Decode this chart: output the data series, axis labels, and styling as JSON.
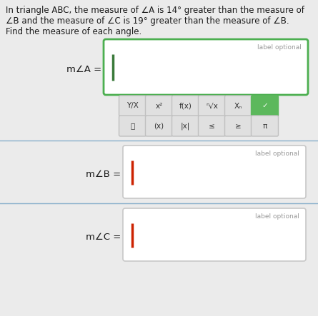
{
  "bg_color": "#ebebeb",
  "title_text_line1": "In triangle ABC, the measure of ∠A is 14° greater than the measure of",
  "title_text_line2": "∠B and the measure of ∠C is 19° greater than the measure of ∠B.",
  "title_text_line3": "Find the measure of each angle.",
  "label_A": "m∠A =",
  "label_B": "m∠B =",
  "label_C": "m∠C =",
  "label_optional": "label optional",
  "box_A_edge_color": "#4CAF50",
  "box_BC_edge_color": "#c8c8c8",
  "cursor_A_color": "#3a7a3a",
  "cursor_BC_color": "#cc2200",
  "divider_color": "#8ab0cc",
  "text_color": "#1a1a1a",
  "label_opt_color": "#999999",
  "toolbar_bg": "#e0e0e0",
  "toolbar_border": "#c0c0c0",
  "check_bg": "#5cb85c",
  "box_face": "#ffffff",
  "row1_labels": [
    "Y/X",
    "x²",
    "f(x)",
    "ⁿ√x",
    "Xₙ",
    "✓"
  ],
  "row2_labels": [
    "🗑",
    "(x)",
    "|x|",
    "≤",
    "≥",
    "π"
  ],
  "title_fontsize": 8.5,
  "label_fontsize": 9.5,
  "btn_fontsize": 7.5,
  "label_opt_fontsize": 6.5
}
